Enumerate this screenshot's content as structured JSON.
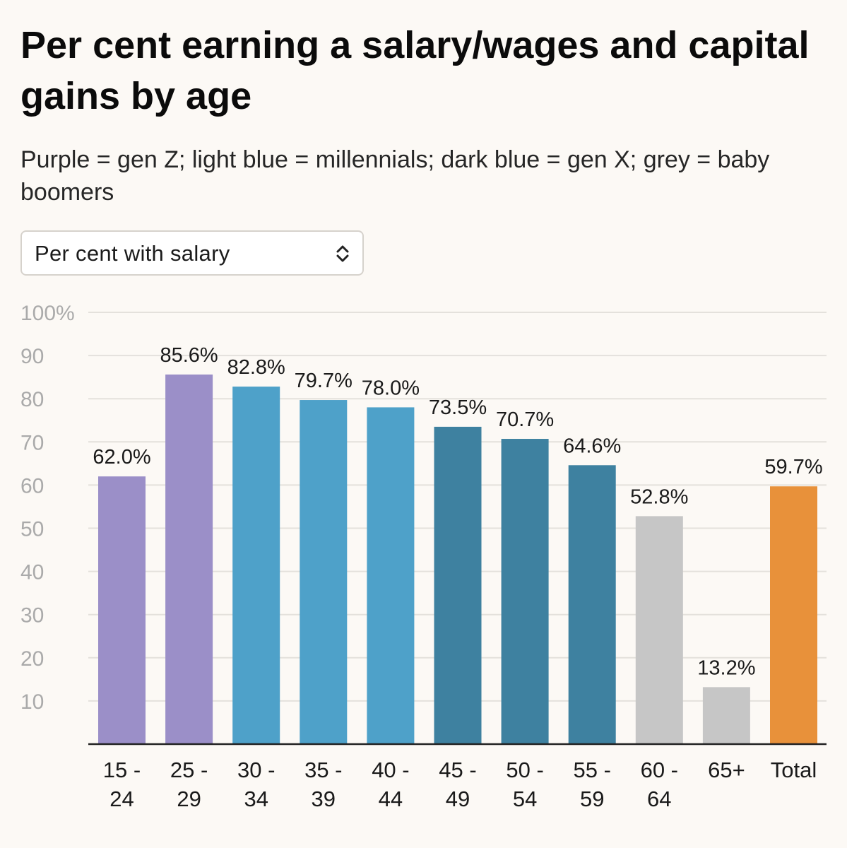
{
  "title": "Per cent earning a salary/wages and capital gains by age",
  "subtitle": "Purple = gen Z; light blue = millennials; dark blue = gen X; grey = baby boomers",
  "selector": {
    "selected": "Per cent with salary",
    "icon": "chevron-up-down-icon"
  },
  "colors": {
    "gen_z": "#9b8fc8",
    "millennials": "#4ea1c9",
    "gen_x": "#3e81a0",
    "baby_boomers": "#c6c6c6",
    "total": "#e8913a",
    "gridline": "#e4e1dc",
    "axis": "#222222",
    "tick_label": "#aaaaaa"
  },
  "chart_data": {
    "type": "bar",
    "categories": [
      "15 - 24",
      "25 - 29",
      "30 - 34",
      "35 - 39",
      "40 - 44",
      "45 - 49",
      "50 - 54",
      "55 - 59",
      "60 - 64",
      "65+",
      "Total"
    ],
    "values": [
      62.0,
      85.6,
      82.8,
      79.7,
      78.0,
      73.5,
      70.7,
      64.6,
      52.8,
      13.2,
      59.7
    ],
    "data_labels": [
      "62.0%",
      "85.6%",
      "82.8%",
      "79.7%",
      "78.0%",
      "73.5%",
      "70.7%",
      "64.6%",
      "52.8%",
      "13.2%",
      "59.7%"
    ],
    "groups": [
      "gen_z",
      "gen_z",
      "millennials",
      "millennials",
      "millennials",
      "gen_x",
      "gen_x",
      "gen_x",
      "baby_boomers",
      "baby_boomers",
      "total"
    ],
    "ylim": [
      0,
      100
    ],
    "yticks": [
      10,
      20,
      30,
      40,
      50,
      60,
      70,
      80,
      90,
      100
    ],
    "ytick_labels": [
      "10",
      "20",
      "30",
      "40",
      "50",
      "60",
      "70",
      "80",
      "90",
      "100%"
    ],
    "grid": true
  }
}
